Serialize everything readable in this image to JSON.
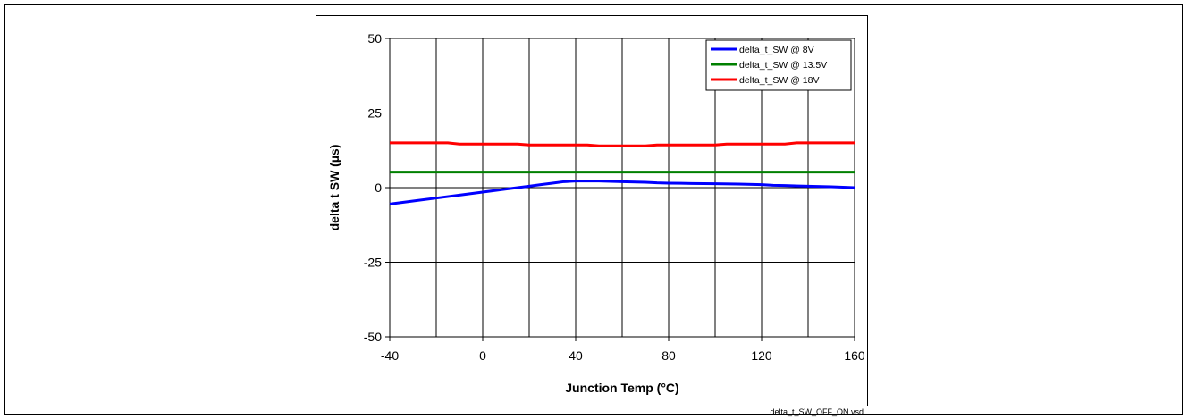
{
  "chart_data": {
    "type": "line",
    "title": "",
    "xlabel": "Junction Temp (°C)",
    "ylabel": "delta t SW (µs)",
    "xlim": [
      -40,
      160
    ],
    "ylim": [
      -50,
      50
    ],
    "x_ticks": [
      "-40",
      "0",
      "40",
      "80",
      "120",
      "160"
    ],
    "x_gridlines": [
      -40,
      -20,
      0,
      20,
      40,
      60,
      80,
      100,
      120,
      140,
      160
    ],
    "y_ticks": [
      "50",
      "25",
      "0",
      "-25",
      "-50"
    ],
    "y_gridlines": [
      50,
      25,
      0,
      -25,
      -50
    ],
    "grid": true,
    "legend_position": "top-right",
    "series": [
      {
        "name": "delta_t_SW @ 8V",
        "color": "#0000ff",
        "x": [
          -40,
          -30,
          -20,
          -10,
          0,
          10,
          20,
          25,
          30,
          35,
          40,
          50,
          60,
          70,
          75,
          80,
          90,
          100,
          110,
          120,
          125,
          130,
          140,
          150,
          160
        ],
        "y": [
          -5.5,
          -4.5,
          -3.5,
          -2.5,
          -1.5,
          -0.5,
          0.5,
          1.0,
          1.5,
          2.0,
          2.2,
          2.2,
          2.0,
          1.8,
          1.6,
          1.5,
          1.4,
          1.3,
          1.2,
          1.0,
          0.8,
          0.7,
          0.5,
          0.3,
          0.0
        ]
      },
      {
        "name": "delta_t_SW @ 13.5V",
        "color": "#008000",
        "x": [
          -40,
          0,
          40,
          80,
          120,
          160
        ],
        "y": [
          5.2,
          5.2,
          5.2,
          5.2,
          5.2,
          5.2
        ]
      },
      {
        "name": "delta_t_SW @ 18V",
        "color": "#ff0000",
        "x": [
          -40,
          -15,
          -10,
          15,
          20,
          45,
          50,
          70,
          75,
          100,
          105,
          130,
          135,
          160
        ],
        "y": [
          15.0,
          15.0,
          14.6,
          14.6,
          14.3,
          14.3,
          14.0,
          14.0,
          14.3,
          14.3,
          14.6,
          14.6,
          15.0,
          15.0
        ]
      }
    ],
    "footer_label": "delta_t_SW_OFF_ON.vsd"
  }
}
